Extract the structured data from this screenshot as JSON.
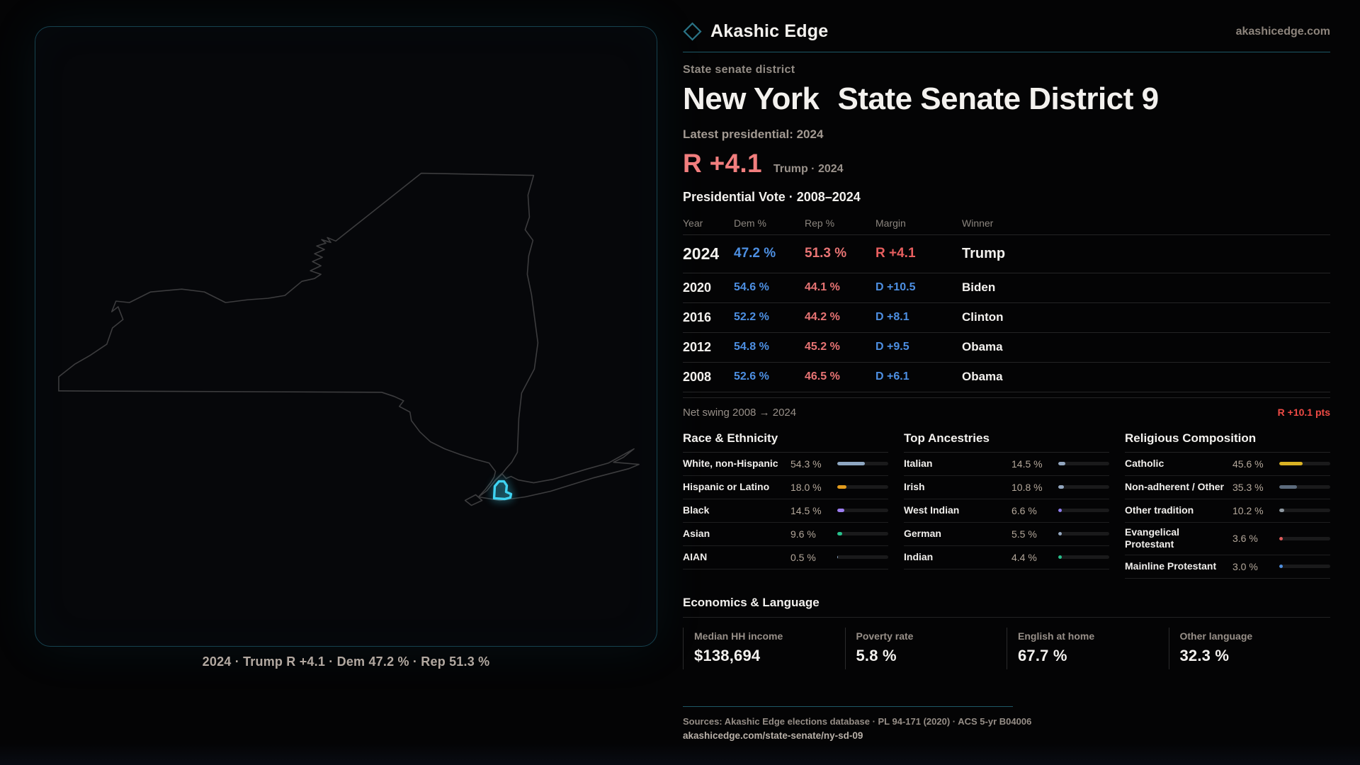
{
  "page": {
    "brand": "Akashic Edge",
    "site": "akashicedge.com"
  },
  "map": {
    "caption": "2024 · Trump R +4.1 · Dem 47.2 % · Rep 51.3 %"
  },
  "profile": {
    "kicker": "State senate district",
    "title_region": "New York",
    "title_district": "State Senate District 9",
    "latest_label": "Latest presidential: 2024",
    "headline_margin": "R +4.1",
    "headline_context": "Trump · 2024"
  },
  "vote_table": {
    "title": "Presidential Vote · 2008–2024",
    "columns": [
      "Year",
      "Dem %",
      "Rep %",
      "Margin",
      "Winner"
    ],
    "rows": [
      {
        "year": "2024",
        "dem": "47.2 %",
        "rep": "51.3 %",
        "margin": "R +4.1",
        "margin_party": "R",
        "winner": "Trump",
        "highlight": true
      },
      {
        "year": "2020",
        "dem": "54.6 %",
        "rep": "44.1 %",
        "margin": "D +10.5",
        "margin_party": "D",
        "winner": "Biden",
        "highlight": false
      },
      {
        "year": "2016",
        "dem": "52.2 %",
        "rep": "44.2 %",
        "margin": "D +8.1",
        "margin_party": "D",
        "winner": "Clinton",
        "highlight": false
      },
      {
        "year": "2012",
        "dem": "54.8 %",
        "rep": "45.2 %",
        "margin": "D +9.5",
        "margin_party": "D",
        "winner": "Obama",
        "highlight": false
      },
      {
        "year": "2008",
        "dem": "52.6 %",
        "rep": "46.5 %",
        "margin": "D +6.1",
        "margin_party": "D",
        "winner": "Obama",
        "highlight": false
      }
    ],
    "net_swing_label": "Net swing 2008 → 2024",
    "net_swing_value": "R +10.1 pts"
  },
  "demographics": {
    "columns": [
      {
        "heading": "Race & Ethnicity",
        "rows": [
          {
            "label": "White, non-Hispanic",
            "value": "54.3 %",
            "pct": 54.3,
            "color": "#8ea7c2"
          },
          {
            "label": "Hispanic or Latino",
            "value": "18.0 %",
            "pct": 18.0,
            "color": "#e39c1d"
          },
          {
            "label": "Black",
            "value": "14.5 %",
            "pct": 14.5,
            "color": "#9c7df0"
          },
          {
            "label": "Asian",
            "value": "9.6 %",
            "pct": 9.6,
            "color": "#27c08c"
          },
          {
            "label": "AIAN",
            "value": "0.5 %",
            "pct": 0.5,
            "color": "#8ea7c2"
          }
        ]
      },
      {
        "heading": "Top Ancestries",
        "rows": [
          {
            "label": "Italian",
            "value": "14.5 %",
            "pct": 14.5,
            "color": "#93a7c0"
          },
          {
            "label": "Irish",
            "value": "10.8 %",
            "pct": 10.8,
            "color": "#93a7c0"
          },
          {
            "label": "West Indian",
            "value": "6.6 %",
            "pct": 6.6,
            "color": "#8f7df0"
          },
          {
            "label": "German",
            "value": "5.5 %",
            "pct": 5.5,
            "color": "#93a7c0"
          },
          {
            "label": "Indian",
            "value": "4.4 %",
            "pct": 4.4,
            "color": "#27c08c"
          }
        ]
      },
      {
        "heading": "Religious Composition",
        "rows": [
          {
            "label": "Catholic",
            "value": "45.6 %",
            "pct": 45.6,
            "color": "#d9b224"
          },
          {
            "label": "Non-adherent / Other",
            "value": "35.3 %",
            "pct": 35.3,
            "color": "#5c6b7c"
          },
          {
            "label": "Other tradition",
            "value": "10.2 %",
            "pct": 10.2,
            "color": "#8d979f"
          },
          {
            "label": "Evangelical Protestant",
            "value": "3.6 %",
            "pct": 3.6,
            "color": "#e05b5b"
          },
          {
            "label": "Mainline Protestant",
            "value": "3.0 %",
            "pct": 3.0,
            "color": "#4f8fe0"
          }
        ]
      }
    ]
  },
  "economics": {
    "heading": "Economics & Language",
    "stats": [
      {
        "label": "Median HH income",
        "value": "$138,694"
      },
      {
        "label": "Poverty rate",
        "value": "5.8 %"
      },
      {
        "label": "English at home",
        "value": "67.7 %"
      },
      {
        "label": "Other language",
        "value": "32.3 %"
      }
    ]
  },
  "footer": {
    "sources": "Sources: Akashic Edge elections database · PL 94-171 (2020) · ACS 5-yr B04006",
    "permalink": "akashicedge.com/state-senate/ny-sd-09"
  },
  "colors": {
    "accent_teal": "#1d5866",
    "district_highlight": "#3fd3f2",
    "dem_blue": "#4d8fe2",
    "rep_red": "#e87474",
    "swing_red": "#ef4b45"
  }
}
